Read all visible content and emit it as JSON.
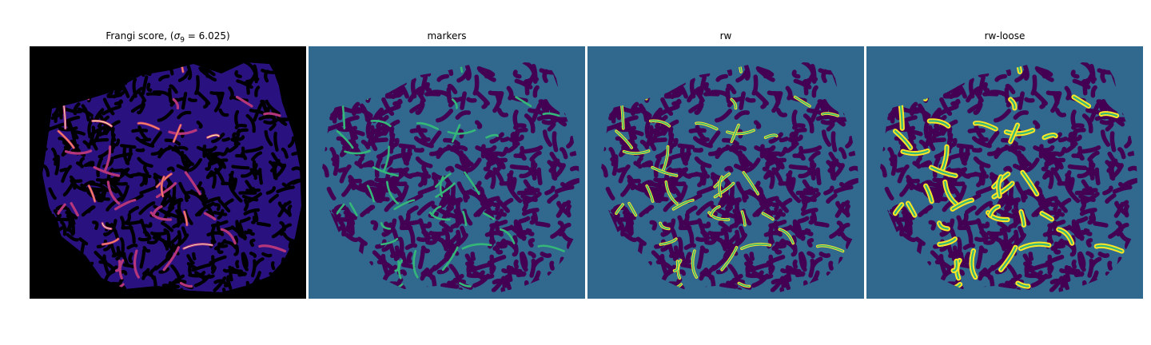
{
  "panels": [
    {
      "title_prefix": "Frangi score, (",
      "sigma_symbol": "σ",
      "sigma_sub": "9",
      "sigma_value": " = 6.025)",
      "colormap": "magma"
    },
    {
      "title": "markers",
      "colormap": "viridis"
    },
    {
      "title": "rw",
      "colormap": "viridis"
    },
    {
      "title": "rw-loose",
      "colormap": "viridis"
    }
  ],
  "colors": {
    "background_dark": "#000000",
    "label_background": "#31688e",
    "label_tissue": "#440154",
    "label_marker": "#35b779",
    "label_vessel": "#fde725",
    "frangi_low": "#2a1180",
    "frangi_high": "#fcfdbf"
  }
}
